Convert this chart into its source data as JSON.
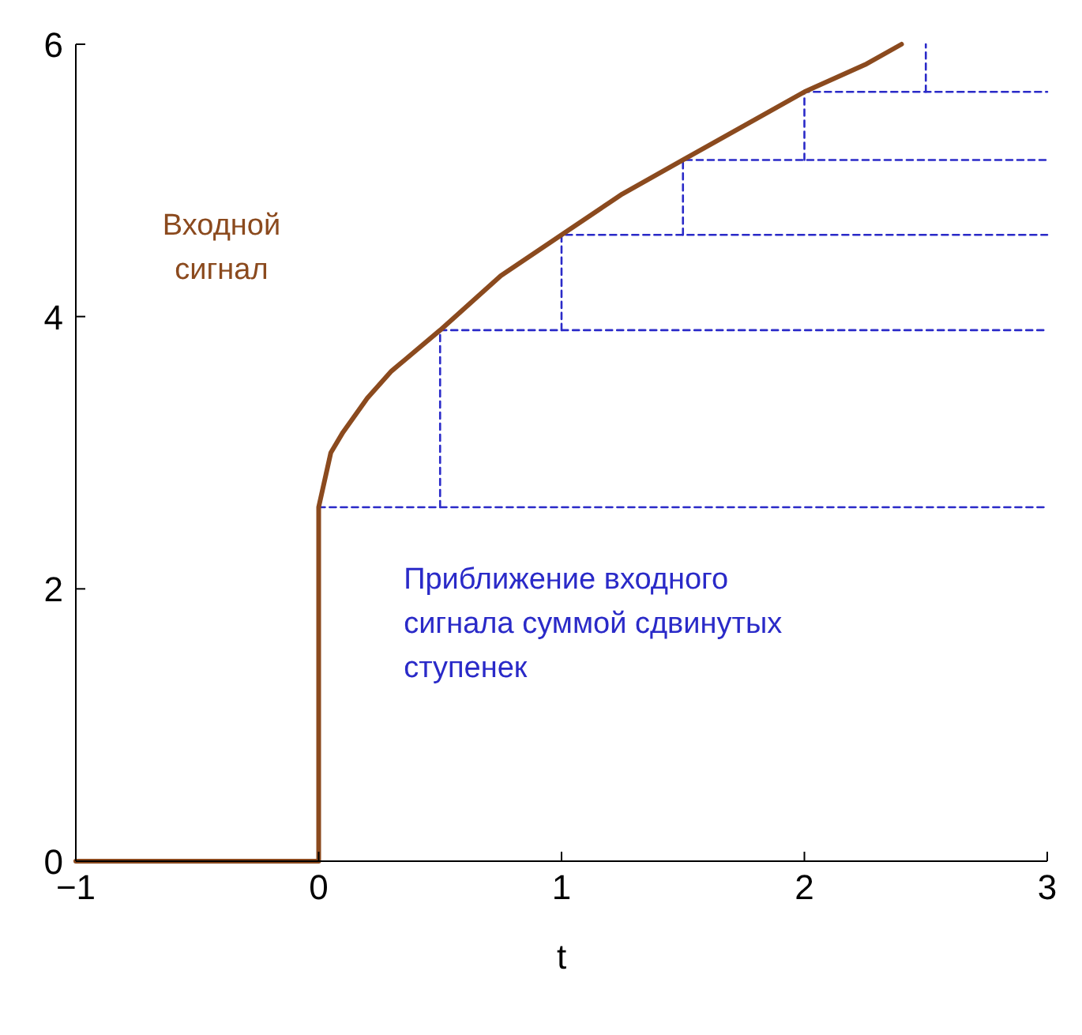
{
  "chart_data": {
    "type": "line",
    "xlabel": "t",
    "xlim": [
      -1,
      3
    ],
    "ylim": [
      0,
      6
    ],
    "xticks": [
      -1,
      0,
      1,
      2,
      3
    ],
    "yticks": [
      0,
      2,
      4,
      6
    ],
    "grid": false,
    "series": [
      {
        "name": "Входной сигнал",
        "color": "#8b4a1e",
        "line_style": "solid",
        "x": [
          -1,
          0,
          0,
          0.05,
          0.1,
          0.2,
          0.3,
          0.5,
          0.75,
          1,
          1.25,
          1.5,
          1.75,
          2,
          2.25,
          2.4
        ],
        "values": [
          0,
          0,
          2.6,
          3.0,
          3.15,
          3.4,
          3.6,
          3.9,
          4.3,
          4.6,
          4.9,
          5.15,
          5.4,
          5.65,
          5.85,
          6
        ]
      },
      {
        "name": "Приближение входного сигнала суммой сдвинутых ступенек",
        "color": "#2a2ac8",
        "line_style": "dashed",
        "x": [
          0,
          0,
          3
        ],
        "values": [
          0,
          2.6,
          2.6
        ]
      },
      {
        "color": "#2a2ac8",
        "line_style": "dashed",
        "x": [
          0.5,
          0.5,
          3
        ],
        "values": [
          2.6,
          3.9,
          3.9
        ]
      },
      {
        "color": "#2a2ac8",
        "line_style": "dashed",
        "x": [
          1,
          1,
          3
        ],
        "values": [
          3.9,
          4.6,
          4.6
        ]
      },
      {
        "color": "#2a2ac8",
        "line_style": "dashed",
        "x": [
          1.5,
          1.5,
          3
        ],
        "values": [
          4.6,
          5.15,
          5.15
        ]
      },
      {
        "color": "#2a2ac8",
        "line_style": "dashed",
        "x": [
          2,
          2,
          3
        ],
        "values": [
          5.15,
          5.65,
          5.65
        ]
      },
      {
        "color": "#2a2ac8",
        "line_style": "dashed",
        "x": [
          2.5,
          2.5
        ],
        "values": [
          5.65,
          6
        ]
      }
    ]
  }
}
